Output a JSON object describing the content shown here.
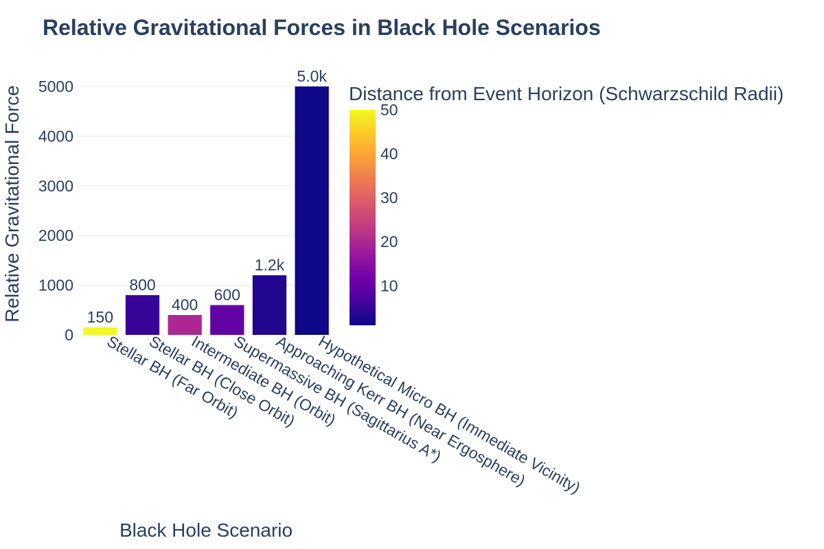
{
  "chart_data": {
    "type": "bar",
    "title": "Relative Gravitational Forces in Black Hole Scenarios",
    "xlabel": "Black Hole Scenario",
    "ylabel": "Relative Gravitational Force",
    "categories": [
      "Stellar BH (Far Orbit)",
      "Stellar BH (Close Orbit)",
      "Intermediate BH (Orbit)",
      "Supermassive BH (Sagittarius A*)",
      "Approaching Kerr BH (Near Ergosphere)",
      "Hypothetical Micro BH (Immediate Vicinity)"
    ],
    "values": [
      150,
      800,
      400,
      600,
      1200,
      5000
    ],
    "value_labels": [
      "150",
      "800",
      "400",
      "600",
      "1.2k",
      "5.0k"
    ],
    "color_values": [
      50,
      5,
      20,
      10,
      3,
      1
    ],
    "ylim": [
      0,
      5000
    ],
    "yticks": [
      0,
      1000,
      2000,
      3000,
      4000,
      5000
    ],
    "grid": true,
    "colorbar": {
      "title": "Distance from Event Horizon (Schwarzschild Radii)",
      "colorscale": "Plasma",
      "range": [
        1,
        50
      ],
      "ticks": [
        10,
        20,
        30,
        40,
        50
      ]
    }
  }
}
